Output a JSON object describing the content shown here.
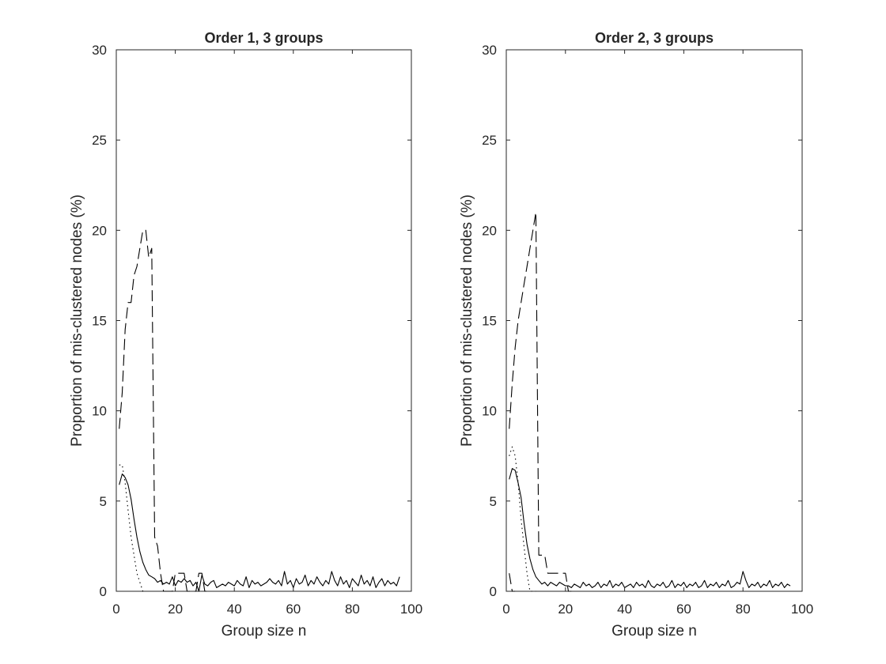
{
  "chart_data": [
    {
      "type": "line",
      "title": "Order 1, 3 groups",
      "xlabel": "Group size n",
      "ylabel": "Proportion of mis-clustered nodes (%)",
      "xlim": [
        0,
        100
      ],
      "ylim": [
        0,
        30
      ],
      "xticks": [
        "0",
        "20",
        "40",
        "60",
        "80",
        "100"
      ],
      "yticks": [
        "0",
        "5",
        "10",
        "15",
        "20",
        "25",
        "30"
      ],
      "grid": false,
      "series": [
        {
          "style": "solid",
          "color": "#000000",
          "x": [
            1,
            2,
            3,
            4,
            5,
            6,
            7,
            8,
            9,
            10,
            11,
            12,
            13,
            14,
            15,
            16,
            17,
            18,
            19,
            20,
            21,
            22,
            23,
            24,
            25,
            26,
            27,
            28,
            29,
            30,
            31,
            32,
            33,
            34,
            35,
            36,
            37,
            38,
            39,
            40,
            41,
            42,
            43,
            44,
            45,
            46,
            47,
            48,
            49,
            50,
            51,
            52,
            53,
            54,
            55,
            56,
            57,
            58,
            59,
            60,
            61,
            62,
            63,
            64,
            65,
            66,
            67,
            68,
            69,
            70,
            71,
            72,
            73,
            74,
            75,
            76,
            77,
            78,
            79,
            80,
            81,
            82,
            83,
            84,
            85,
            86,
            87,
            88,
            89,
            90,
            91,
            92,
            93,
            94,
            95,
            96
          ],
          "y": [
            5.9,
            6.5,
            6.3,
            5.9,
            5.1,
            4.0,
            3.0,
            2.2,
            1.6,
            1.2,
            0.9,
            0.8,
            0.7,
            0.5,
            0.6,
            0.4,
            0.5,
            0.4,
            0.8,
            0.3,
            0.6,
            0.5,
            0.7,
            0.5,
            0.6,
            0.3,
            0.5,
            0.0,
            0.9,
            0.4,
            0.3,
            0.5,
            0.6,
            0.2,
            0.3,
            0.4,
            0.3,
            0.5,
            0.4,
            0.3,
            0.6,
            0.4,
            0.3,
            0.8,
            0.2,
            0.6,
            0.4,
            0.5,
            0.3,
            0.4,
            0.5,
            0.7,
            0.5,
            0.4,
            0.6,
            0.3,
            1.1,
            0.4,
            0.6,
            0.2,
            0.7,
            0.4,
            0.5,
            0.9,
            0.3,
            0.6,
            0.4,
            0.8,
            0.5,
            0.3,
            0.6,
            0.4,
            1.1,
            0.6,
            0.3,
            0.8,
            0.4,
            0.6,
            0.2,
            0.7,
            0.5,
            0.3,
            0.9,
            0.4,
            0.6,
            0.3,
            0.8,
            0.2,
            0.5,
            0.7,
            0.3,
            0.6,
            0.4,
            0.5,
            0.3,
            0.8
          ]
        },
        {
          "style": "dashed",
          "color": "#000000",
          "x": [
            1,
            2,
            3,
            4,
            5,
            6,
            7,
            8,
            9,
            10,
            11,
            12,
            13,
            14,
            15,
            16,
            17,
            18,
            19,
            20,
            21,
            22,
            23,
            24,
            25,
            26,
            27,
            28,
            29,
            30,
            31,
            32
          ],
          "y": [
            9,
            11,
            14.5,
            16,
            16,
            17.5,
            18,
            19,
            20,
            20,
            18.5,
            19,
            3,
            2.5,
            1,
            0,
            0,
            0,
            0,
            1,
            1,
            1,
            1,
            0,
            0,
            0,
            0,
            1,
            1,
            0,
            0,
            0
          ]
        },
        {
          "style": "dotted",
          "color": "#000000",
          "x": [
            1,
            2,
            3,
            4,
            5,
            6,
            7,
            8,
            9,
            10
          ],
          "y": [
            7,
            7,
            6,
            4.5,
            3,
            2,
            1,
            0.5,
            0,
            0
          ]
        }
      ]
    },
    {
      "type": "line",
      "title": "Order 2, 3 groups",
      "xlabel": "Group size n",
      "ylabel": "Proportion of mis-clustered nodes (%)",
      "xlim": [
        0,
        100
      ],
      "ylim": [
        0,
        30
      ],
      "xticks": [
        "0",
        "20",
        "40",
        "60",
        "80",
        "100"
      ],
      "yticks": [
        "0",
        "5",
        "10",
        "15",
        "20",
        "25",
        "30"
      ],
      "grid": false,
      "series": [
        {
          "style": "solid",
          "color": "#000000",
          "x": [
            1,
            2,
            3,
            4,
            5,
            6,
            7,
            8,
            9,
            10,
            11,
            12,
            13,
            14,
            15,
            16,
            17,
            18,
            19,
            20,
            21,
            22,
            23,
            24,
            25,
            26,
            27,
            28,
            29,
            30,
            31,
            32,
            33,
            34,
            35,
            36,
            37,
            38,
            39,
            40,
            41,
            42,
            43,
            44,
            45,
            46,
            47,
            48,
            49,
            50,
            51,
            52,
            53,
            54,
            55,
            56,
            57,
            58,
            59,
            60,
            61,
            62,
            63,
            64,
            65,
            66,
            67,
            68,
            69,
            70,
            71,
            72,
            73,
            74,
            75,
            76,
            77,
            78,
            79,
            80,
            81,
            82,
            83,
            84,
            85,
            86,
            87,
            88,
            89,
            90,
            91,
            92,
            93,
            94,
            95,
            96
          ],
          "y": [
            6.2,
            6.8,
            6.7,
            6.0,
            5.2,
            3.8,
            2.6,
            1.8,
            1.2,
            0.8,
            0.6,
            0.4,
            0.5,
            0.3,
            0.5,
            0.4,
            0.3,
            0.5,
            0.4,
            0.3,
            0.3,
            0.2,
            0.4,
            0.3,
            0.2,
            0.5,
            0.3,
            0.4,
            0.2,
            0.3,
            0.5,
            0.2,
            0.4,
            0.3,
            0.6,
            0.2,
            0.4,
            0.3,
            0.5,
            0.2,
            0.3,
            0.4,
            0.2,
            0.5,
            0.3,
            0.4,
            0.2,
            0.6,
            0.3,
            0.2,
            0.4,
            0.3,
            0.5,
            0.2,
            0.3,
            0.6,
            0.2,
            0.4,
            0.3,
            0.5,
            0.2,
            0.4,
            0.3,
            0.5,
            0.2,
            0.3,
            0.6,
            0.2,
            0.4,
            0.3,
            0.5,
            0.2,
            0.4,
            0.3,
            0.6,
            0.2,
            0.3,
            0.5,
            0.4,
            1.1,
            0.6,
            0.2,
            0.4,
            0.3,
            0.5,
            0.2,
            0.4,
            0.3,
            0.6,
            0.2,
            0.4,
            0.3,
            0.5,
            0.2,
            0.4,
            0.3
          ]
        },
        {
          "style": "dashed",
          "color": "#000000",
          "x": [
            1,
            2,
            3,
            4,
            5,
            6,
            7,
            8,
            9,
            10,
            11,
            12,
            13,
            14,
            15,
            16,
            17,
            18,
            19,
            20,
            21,
            22
          ],
          "y": [
            9,
            11.5,
            13.5,
            15,
            16,
            17,
            18,
            19,
            20,
            21,
            2,
            2,
            2,
            1,
            1,
            1,
            1,
            1,
            1,
            1,
            0,
            0
          ]
        },
        {
          "style": "dashed",
          "color": "#000000",
          "x": [
            1,
            2,
            3
          ],
          "y": [
            1,
            0,
            0
          ]
        },
        {
          "style": "dotted",
          "color": "#000000",
          "x": [
            1,
            2,
            3,
            4,
            5,
            6,
            7,
            8,
            9,
            10
          ],
          "y": [
            7.5,
            8,
            7.5,
            6,
            4,
            2.5,
            1,
            0,
            0,
            0
          ]
        }
      ]
    }
  ]
}
